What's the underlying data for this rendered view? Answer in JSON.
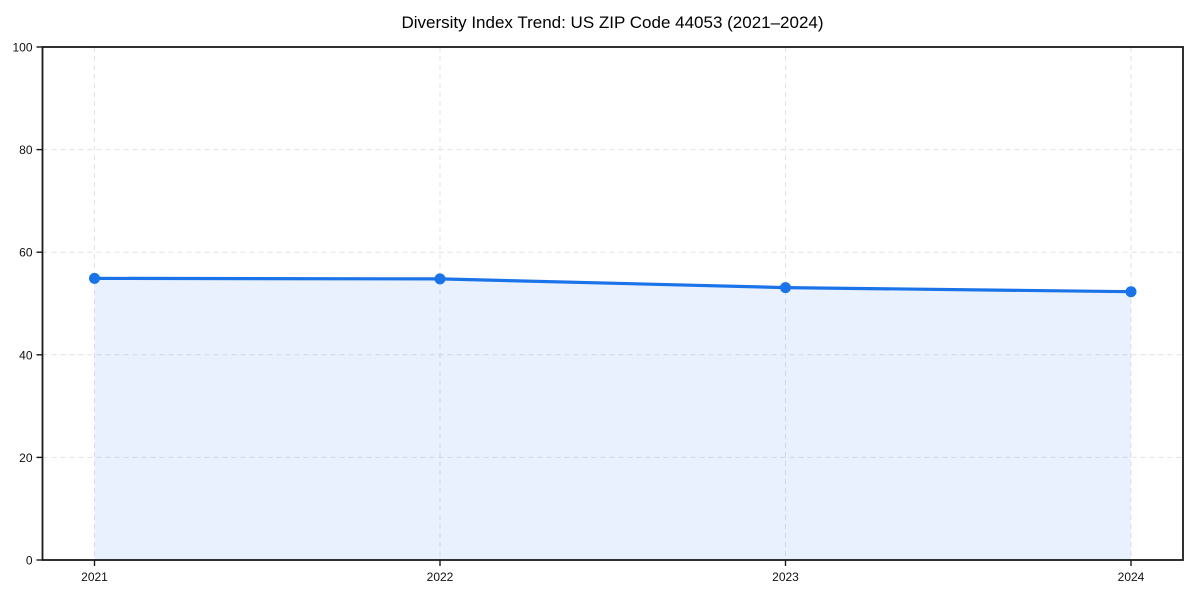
{
  "figure": {
    "background": "#ffffff"
  },
  "chart_data": {
    "type": "line",
    "title": "Diversity Index Trend: US ZIP Code 44053 (2021–2024)",
    "categories": [
      "2021",
      "2022",
      "2023",
      "2024"
    ],
    "x": [
      2021,
      2022,
      2023,
      2024
    ],
    "series": [
      {
        "name": "Diversity Index",
        "values": [
          54.9,
          54.8,
          53.1,
          52.3
        ],
        "marker": "circle",
        "area_fill": true
      }
    ],
    "xlabel": "",
    "ylabel": "",
    "ylim": [
      0,
      100
    ],
    "yticks": [
      0,
      20,
      40,
      60,
      80,
      100
    ],
    "grid": true,
    "grid_style": "dashed",
    "legend": "none",
    "colors": {
      "line": "#1a73e8",
      "fill": "rgba(26,115,232,0.10)",
      "grid": "#e2e2e2",
      "axis": "#1a1a1a",
      "text": "#111111",
      "background": "#ffffff"
    }
  }
}
